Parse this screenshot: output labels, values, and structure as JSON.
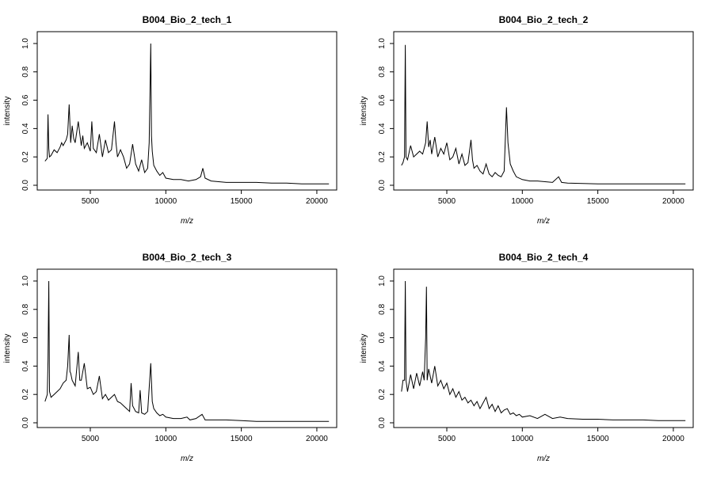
{
  "figure": {
    "background": "#ffffff",
    "line_color": "#000000"
  },
  "chart_data": [
    {
      "type": "line",
      "title": "B004_Bio_2_tech_1",
      "xlabel": "m/z",
      "ylabel": "intensity",
      "xlim": [
        1800,
        21000
      ],
      "ylim": [
        0,
        1.05
      ],
      "x_ticks": [
        5000,
        10000,
        15000,
        20000
      ],
      "y_ticks": [
        0.0,
        0.2,
        0.4,
        0.6,
        0.8,
        1.0
      ],
      "grid": false,
      "x": [
        2000,
        2150,
        2200,
        2250,
        2300,
        2400,
        2600,
        2800,
        3000,
        3100,
        3200,
        3400,
        3500,
        3600,
        3700,
        3800,
        3900,
        4000,
        4200,
        4400,
        4500,
        4600,
        4800,
        5000,
        5100,
        5200,
        5400,
        5600,
        5800,
        6000,
        6200,
        6400,
        6600,
        6700,
        6800,
        7000,
        7200,
        7400,
        7600,
        7800,
        8000,
        8200,
        8400,
        8600,
        8800,
        8900,
        8950,
        9000,
        9050,
        9100,
        9200,
        9400,
        9600,
        9800,
        10000,
        10500,
        11000,
        11500,
        12000,
        12300,
        12450,
        12600,
        13000,
        14000,
        15000,
        16000,
        17000,
        18000,
        19000,
        20000,
        20800
      ],
      "y": [
        0.17,
        0.19,
        0.5,
        0.26,
        0.2,
        0.21,
        0.25,
        0.23,
        0.27,
        0.3,
        0.28,
        0.32,
        0.36,
        0.57,
        0.3,
        0.42,
        0.33,
        0.3,
        0.45,
        0.28,
        0.35,
        0.26,
        0.3,
        0.24,
        0.45,
        0.26,
        0.23,
        0.36,
        0.2,
        0.32,
        0.23,
        0.25,
        0.45,
        0.3,
        0.2,
        0.25,
        0.2,
        0.12,
        0.15,
        0.29,
        0.15,
        0.1,
        0.18,
        0.09,
        0.12,
        0.3,
        0.65,
        1.0,
        0.35,
        0.24,
        0.14,
        0.1,
        0.07,
        0.09,
        0.05,
        0.04,
        0.04,
        0.03,
        0.04,
        0.06,
        0.12,
        0.05,
        0.03,
        0.02,
        0.02,
        0.02,
        0.015,
        0.015,
        0.01,
        0.01,
        0.01
      ]
    },
    {
      "type": "line",
      "title": "B004_Bio_2_tech_2",
      "xlabel": "m/z",
      "ylabel": "intensity",
      "xlim": [
        1800,
        21000
      ],
      "ylim": [
        0,
        1.05
      ],
      "x_ticks": [
        5000,
        10000,
        15000,
        20000
      ],
      "y_ticks": [
        0.0,
        0.2,
        0.4,
        0.6,
        0.8,
        1.0
      ],
      "grid": false,
      "x": [
        2000,
        2100,
        2200,
        2250,
        2300,
        2400,
        2600,
        2800,
        3000,
        3200,
        3400,
        3600,
        3700,
        3800,
        3900,
        4000,
        4200,
        4400,
        4600,
        4800,
        5000,
        5200,
        5400,
        5600,
        5800,
        6000,
        6200,
        6400,
        6600,
        6700,
        6800,
        7000,
        7200,
        7400,
        7600,
        7800,
        8000,
        8200,
        8400,
        8600,
        8800,
        8950,
        9050,
        9200,
        9400,
        9600,
        10000,
        10500,
        11000,
        12000,
        12400,
        12600,
        13000,
        15000,
        17000,
        19000,
        20000,
        20800
      ],
      "y": [
        0.14,
        0.16,
        0.2,
        0.99,
        0.2,
        0.18,
        0.28,
        0.2,
        0.22,
        0.24,
        0.22,
        0.3,
        0.45,
        0.27,
        0.32,
        0.22,
        0.34,
        0.2,
        0.26,
        0.22,
        0.3,
        0.18,
        0.2,
        0.26,
        0.15,
        0.22,
        0.14,
        0.16,
        0.32,
        0.18,
        0.12,
        0.14,
        0.1,
        0.08,
        0.15,
        0.08,
        0.06,
        0.09,
        0.07,
        0.06,
        0.1,
        0.55,
        0.3,
        0.15,
        0.1,
        0.06,
        0.04,
        0.03,
        0.03,
        0.02,
        0.06,
        0.02,
        0.015,
        0.01,
        0.01,
        0.01,
        0.01,
        0.01
      ]
    },
    {
      "type": "line",
      "title": "B004_Bio_2_tech_3",
      "xlabel": "m/z",
      "ylabel": "intensity",
      "xlim": [
        1800,
        21000
      ],
      "ylim": [
        0,
        1.05
      ],
      "x_ticks": [
        5000,
        10000,
        15000,
        20000
      ],
      "y_ticks": [
        0.0,
        0.2,
        0.4,
        0.6,
        0.8,
        1.0
      ],
      "grid": false,
      "x": [
        2000,
        2150,
        2200,
        2250,
        2300,
        2400,
        2600,
        2800,
        3000,
        3200,
        3400,
        3500,
        3600,
        3650,
        3700,
        3800,
        4000,
        4200,
        4300,
        4400,
        4600,
        4800,
        5000,
        5200,
        5400,
        5600,
        5800,
        6000,
        6200,
        6400,
        6600,
        6800,
        7000,
        7200,
        7400,
        7600,
        7700,
        7800,
        8000,
        8200,
        8300,
        8400,
        8600,
        8800,
        9000,
        9100,
        9200,
        9400,
        9600,
        9800,
        10000,
        10500,
        11000,
        11400,
        11600,
        12000,
        12400,
        12600,
        13000,
        14000,
        15000,
        16000,
        17000,
        18000,
        19000,
        20000,
        20800
      ],
      "y": [
        0.15,
        0.2,
        0.44,
        1.0,
        0.22,
        0.18,
        0.2,
        0.22,
        0.24,
        0.28,
        0.3,
        0.4,
        0.62,
        0.36,
        0.35,
        0.3,
        0.26,
        0.5,
        0.3,
        0.3,
        0.42,
        0.24,
        0.25,
        0.2,
        0.22,
        0.33,
        0.17,
        0.2,
        0.16,
        0.18,
        0.2,
        0.15,
        0.14,
        0.12,
        0.1,
        0.08,
        0.28,
        0.12,
        0.08,
        0.07,
        0.23,
        0.07,
        0.06,
        0.08,
        0.42,
        0.15,
        0.1,
        0.07,
        0.05,
        0.06,
        0.04,
        0.03,
        0.03,
        0.04,
        0.02,
        0.03,
        0.06,
        0.02,
        0.02,
        0.02,
        0.015,
        0.01,
        0.01,
        0.01,
        0.01,
        0.01,
        0.01
      ]
    },
    {
      "type": "line",
      "title": "B004_Bio_2_tech_4",
      "xlabel": "m/z",
      "ylabel": "intensity",
      "xlim": [
        1800,
        21000
      ],
      "ylim": [
        0,
        1.05
      ],
      "x_ticks": [
        5000,
        10000,
        15000,
        20000
      ],
      "y_ticks": [
        0.0,
        0.2,
        0.4,
        0.6,
        0.8,
        1.0
      ],
      "grid": false,
      "x": [
        2000,
        2100,
        2200,
        2250,
        2300,
        2400,
        2600,
        2800,
        3000,
        3200,
        3400,
        3500,
        3600,
        3650,
        3700,
        3800,
        4000,
        4200,
        4400,
        4600,
        4800,
        5000,
        5200,
        5400,
        5600,
        5800,
        6000,
        6200,
        6400,
        6600,
        6800,
        7000,
        7200,
        7400,
        7600,
        7800,
        8000,
        8200,
        8400,
        8600,
        8800,
        9000,
        9200,
        9400,
        9600,
        9800,
        10000,
        10500,
        11000,
        11500,
        12000,
        12500,
        13000,
        14000,
        15000,
        16000,
        17000,
        18000,
        19000,
        20000,
        20800
      ],
      "y": [
        0.22,
        0.3,
        0.3,
        1.0,
        0.3,
        0.22,
        0.34,
        0.24,
        0.35,
        0.26,
        0.36,
        0.3,
        0.6,
        0.96,
        0.3,
        0.38,
        0.28,
        0.4,
        0.26,
        0.3,
        0.24,
        0.28,
        0.2,
        0.24,
        0.18,
        0.22,
        0.16,
        0.18,
        0.14,
        0.16,
        0.12,
        0.15,
        0.1,
        0.14,
        0.18,
        0.1,
        0.13,
        0.08,
        0.12,
        0.07,
        0.09,
        0.1,
        0.06,
        0.07,
        0.05,
        0.06,
        0.04,
        0.05,
        0.03,
        0.06,
        0.03,
        0.04,
        0.03,
        0.025,
        0.025,
        0.02,
        0.02,
        0.02,
        0.015,
        0.015,
        0.015
      ]
    }
  ]
}
